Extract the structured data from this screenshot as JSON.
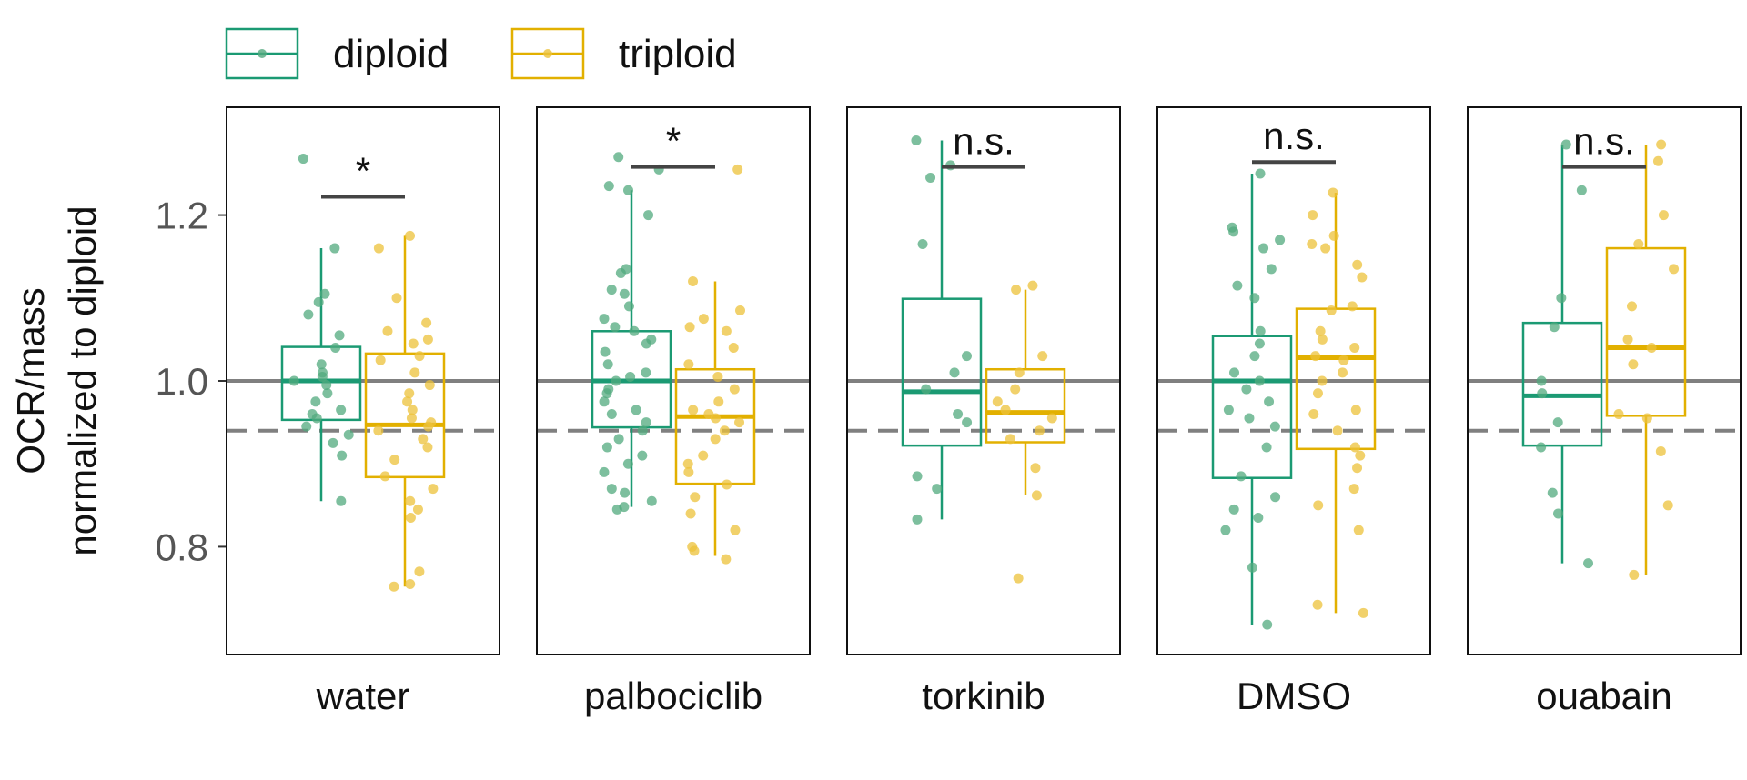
{
  "colors": {
    "diploid": "#1b9a73",
    "diploid_points": "#52a97e",
    "triploid": "#e2b000",
    "triploid_points": "#ecc23a",
    "reference_line": "#808080",
    "significance_bar": "#444444"
  },
  "chart_data": {
    "type": "box",
    "ylabel_lines": [
      "OCR/mass",
      "normalized to diploid"
    ],
    "ylim": [
      0.67,
      1.33
    ],
    "yticks": [
      "0.8",
      "1.0",
      "1.2"
    ],
    "reference_lines": [
      {
        "value": 1.0,
        "style": "solid"
      },
      {
        "value": 0.94,
        "style": "dashed"
      }
    ],
    "legend": {
      "placement": "top-left",
      "entries": [
        {
          "series": "diploid",
          "label": "diploid"
        },
        {
          "series": "triploid",
          "label": "triploid"
        }
      ]
    },
    "panels": [
      {
        "label": "water",
        "significance": "*",
        "sig_y": 1.222,
        "groups": [
          {
            "series": "diploid",
            "whisker_low": 0.855,
            "q1": 0.953,
            "median": 1.0,
            "q3": 1.041,
            "whisker_high": 1.16,
            "points": [
              1.268,
              1.16,
              1.105,
              1.095,
              1.08,
              1.055,
              1.04,
              1.02,
              1.01,
              1.005,
              1.0,
              0.995,
              0.985,
              0.975,
              0.965,
              0.96,
              0.955,
              0.945,
              0.935,
              0.925,
              0.91,
              0.855
            ]
          },
          {
            "series": "triploid",
            "whisker_low": 0.752,
            "q1": 0.884,
            "median": 0.947,
            "q3": 1.033,
            "whisker_high": 1.175,
            "points": [
              1.175,
              1.16,
              1.1,
              1.07,
              1.06,
              1.05,
              1.045,
              1.03,
              1.025,
              1.01,
              0.995,
              0.985,
              0.975,
              0.965,
              0.955,
              0.95,
              0.945,
              0.94,
              0.93,
              0.92,
              0.905,
              0.885,
              0.87,
              0.855,
              0.845,
              0.835,
              0.77,
              0.755,
              0.752
            ]
          }
        ]
      },
      {
        "label": "palbociclib",
        "significance": "*",
        "sig_y": 1.258,
        "groups": [
          {
            "series": "diploid",
            "whisker_low": 0.848,
            "q1": 0.944,
            "median": 1.0,
            "q3": 1.06,
            "whisker_high": 1.23,
            "points": [
              1.27,
              1.255,
              1.235,
              1.23,
              1.2,
              1.135,
              1.13,
              1.11,
              1.105,
              1.09,
              1.075,
              1.065,
              1.06,
              1.05,
              1.045,
              1.035,
              1.02,
              1.01,
              1.005,
              1.0,
              0.99,
              0.985,
              0.975,
              0.965,
              0.96,
              0.95,
              0.94,
              0.93,
              0.92,
              0.91,
              0.9,
              0.89,
              0.87,
              0.865,
              0.855,
              0.848,
              0.845
            ]
          },
          {
            "series": "triploid",
            "whisker_low": 0.789,
            "q1": 0.876,
            "median": 0.957,
            "q3": 1.014,
            "whisker_high": 1.12,
            "points": [
              1.255,
              1.12,
              1.085,
              1.075,
              1.065,
              1.06,
              1.04,
              1.02,
              1.005,
              0.99,
              0.975,
              0.965,
              0.96,
              0.955,
              0.95,
              0.94,
              0.93,
              0.91,
              0.9,
              0.89,
              0.875,
              0.86,
              0.84,
              0.82,
              0.8,
              0.795,
              0.785
            ]
          }
        ]
      },
      {
        "label": "torkinib",
        "significance": "n.s.",
        "sig_y": 1.258,
        "groups": [
          {
            "series": "diploid",
            "whisker_low": 0.833,
            "q1": 0.922,
            "median": 0.987,
            "q3": 1.099,
            "whisker_high": 1.29,
            "points": [
              1.29,
              1.26,
              1.245,
              1.165,
              1.03,
              1.01,
              0.99,
              0.96,
              0.95,
              0.885,
              0.87,
              0.833
            ]
          },
          {
            "series": "triploid",
            "whisker_low": 0.862,
            "q1": 0.926,
            "median": 0.962,
            "q3": 1.014,
            "whisker_high": 1.11,
            "points": [
              1.115,
              1.11,
              1.03,
              1.01,
              0.99,
              0.975,
              0.965,
              0.955,
              0.94,
              0.93,
              0.895,
              0.862,
              0.762
            ]
          }
        ]
      },
      {
        "label": "DMSO",
        "significance": "n.s.",
        "sig_y": 1.264,
        "groups": [
          {
            "series": "diploid",
            "whisker_low": 0.706,
            "q1": 0.883,
            "median": 1.0,
            "q3": 1.054,
            "whisker_high": 1.25,
            "points": [
              1.25,
              1.185,
              1.18,
              1.17,
              1.16,
              1.135,
              1.115,
              1.1,
              1.06,
              1.045,
              1.03,
              1.01,
              1.0,
              0.99,
              0.975,
              0.965,
              0.955,
              0.945,
              0.92,
              0.885,
              0.86,
              0.845,
              0.835,
              0.82,
              0.775,
              0.706
            ]
          },
          {
            "series": "triploid",
            "whisker_low": 0.72,
            "q1": 0.918,
            "median": 1.028,
            "q3": 1.087,
            "whisker_high": 1.227,
            "points": [
              1.227,
              1.2,
              1.175,
              1.165,
              1.16,
              1.14,
              1.125,
              1.09,
              1.085,
              1.06,
              1.05,
              1.04,
              1.03,
              1.025,
              1.01,
              1.0,
              0.985,
              0.965,
              0.96,
              0.94,
              0.92,
              0.91,
              0.895,
              0.87,
              0.85,
              0.82,
              0.73,
              0.72
            ]
          }
        ]
      },
      {
        "label": "ouabain",
        "significance": "n.s.",
        "sig_y": 1.258,
        "groups": [
          {
            "series": "diploid",
            "whisker_low": 0.78,
            "q1": 0.922,
            "median": 0.982,
            "q3": 1.07,
            "whisker_high": 1.285,
            "points": [
              1.285,
              1.23,
              1.1,
              1.065,
              1.0,
              0.985,
              0.95,
              0.92,
              0.865,
              0.84,
              0.78
            ]
          },
          {
            "series": "triploid",
            "whisker_low": 0.766,
            "q1": 0.958,
            "median": 1.04,
            "q3": 1.16,
            "whisker_high": 1.285,
            "points": [
              1.285,
              1.265,
              1.2,
              1.165,
              1.135,
              1.09,
              1.05,
              1.04,
              1.02,
              0.96,
              0.955,
              0.915,
              0.85,
              0.766
            ]
          }
        ]
      }
    ]
  }
}
